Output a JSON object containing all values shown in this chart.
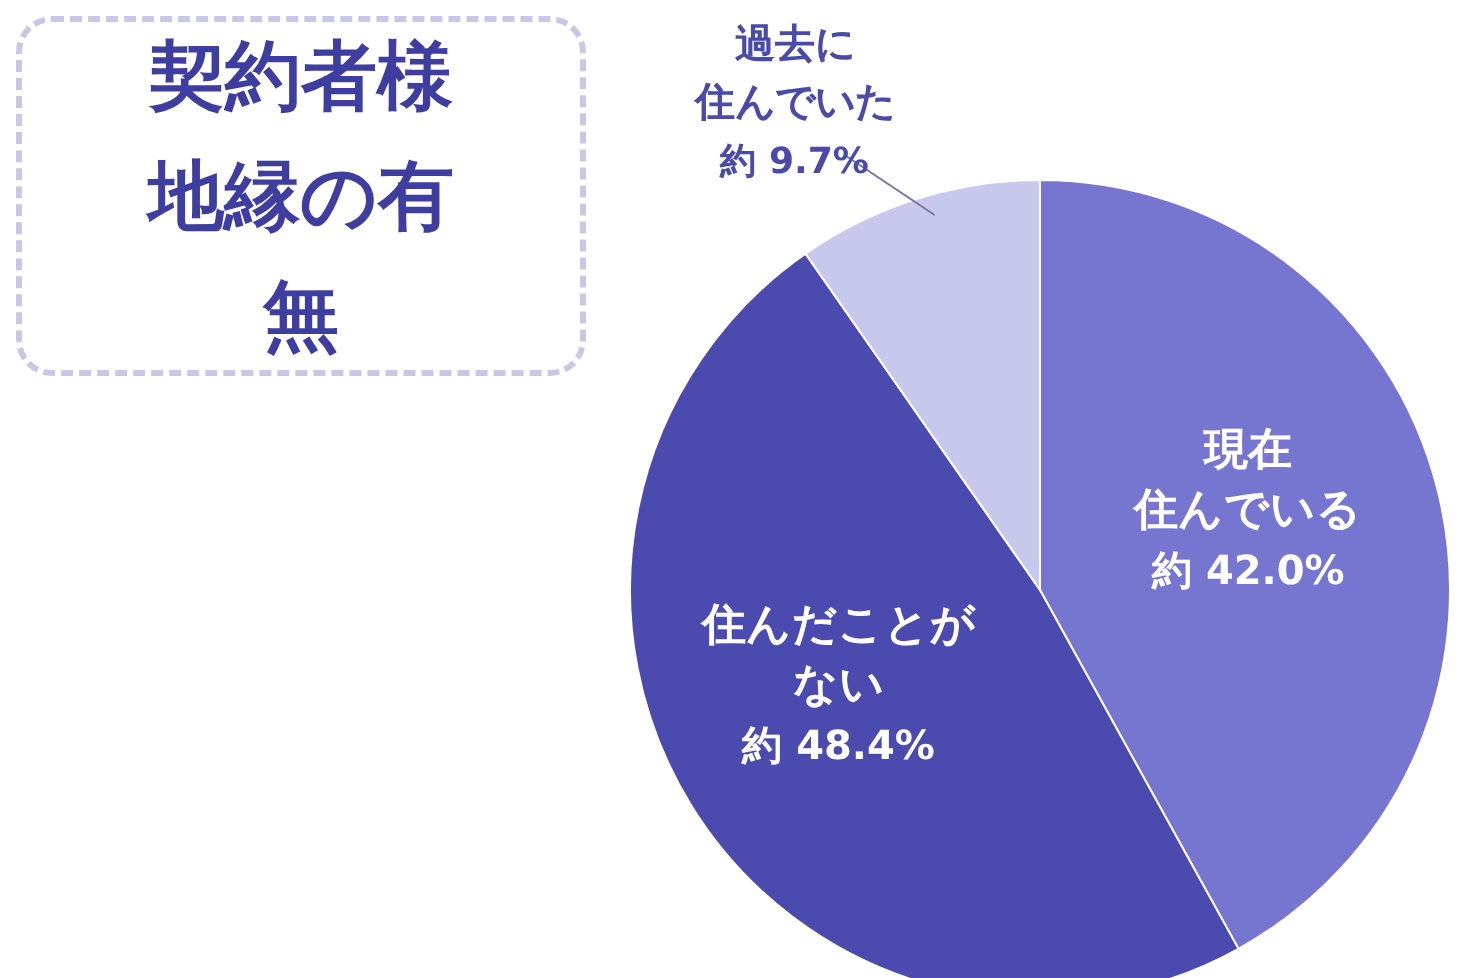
{
  "chart_data": {
    "type": "pie",
    "title": "契約者様地縁の有無",
    "categories": [
      "現在住んでいる",
      "住んだことがない",
      "過去に住んでいた"
    ],
    "values": [
      42.0,
      48.4,
      9.7
    ],
    "colors": [
      "#7676d0",
      "#4a4aaf",
      "#c8c8ec"
    ],
    "value_labels": [
      "約 42.0%",
      "約 48.4%",
      "約 9.7%"
    ],
    "legend": false
  }
}
